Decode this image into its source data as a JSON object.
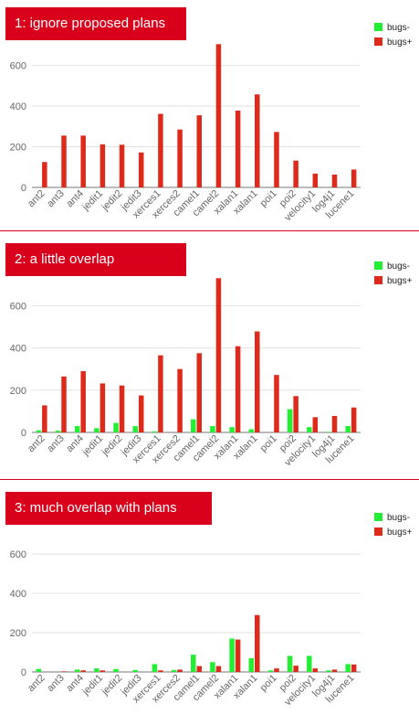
{
  "colors": {
    "bugs_minus": "#22ee33",
    "bugs_plus": "#dd2a1b",
    "banner": "#d9001b",
    "grid": "#e2e2e2",
    "axis": "#777777",
    "tick_text": "#666666"
  },
  "panels": [
    {
      "title": "1: ignore proposed plans"
    },
    {
      "title": "2:  a little overlap"
    },
    {
      "title": "3:  much overlap with plans"
    }
  ],
  "chart_data": [
    {
      "type": "bar",
      "title": "1: ignore proposed plans",
      "categories": [
        "ant2",
        "ant3",
        "ant4",
        "jedit1",
        "jedit2",
        "jedit3",
        "xerces1",
        "xerces2",
        "camel1",
        "camel2",
        "xalan1",
        "xalan1",
        "poi1",
        "poi2",
        "velocity1",
        "log4j1",
        "lucene1"
      ],
      "series": [
        {
          "name": "bugs-",
          "values": [
            0,
            0,
            0,
            0,
            0,
            0,
            0,
            0,
            0,
            0,
            0,
            0,
            0,
            0,
            0,
            0,
            0
          ]
        },
        {
          "name": "bugs+",
          "values": [
            125,
            255,
            255,
            212,
            210,
            172,
            362,
            285,
            355,
            705,
            378,
            458,
            273,
            132,
            68,
            63,
            88
          ]
        }
      ],
      "ylim": [
        0,
        720
      ],
      "yticks": [
        0,
        200,
        400,
        600
      ],
      "grid": true,
      "legend": "top-right"
    },
    {
      "type": "bar",
      "title": "2:  a little overlap",
      "categories": [
        "ant2",
        "ant3",
        "ant4",
        "jedit1",
        "jedit2",
        "jedit3",
        "xerces1",
        "xerces2",
        "camel1",
        "camel2",
        "xalan1",
        "xalan1",
        "poi1",
        "poi2",
        "velocity1",
        "log4j1",
        "lucene1"
      ],
      "series": [
        {
          "name": "bugs-",
          "values": [
            10,
            8,
            30,
            20,
            45,
            30,
            5,
            0,
            62,
            30,
            25,
            15,
            0,
            110,
            25,
            3,
            30
          ]
        },
        {
          "name": "bugs+",
          "values": [
            128,
            265,
            290,
            232,
            222,
            175,
            365,
            300,
            375,
            730,
            408,
            478,
            272,
            172,
            72,
            78,
            118
          ]
        }
      ],
      "ylim": [
        0,
        740
      ],
      "yticks": [
        0,
        200,
        400,
        600
      ],
      "grid": true,
      "legend": "top-right"
    },
    {
      "type": "bar",
      "title": "3:  much overlap with plans",
      "categories": [
        "ant2",
        "ant3",
        "ant4",
        "jedit1",
        "jedit2",
        "jedit3",
        "xerces1",
        "xerces2",
        "camel1",
        "camel2",
        "xalan1",
        "xalan1",
        "poi1",
        "poi2",
        "velocity1",
        "log4j1",
        "lucene1"
      ],
      "series": [
        {
          "name": "bugs-",
          "values": [
            15,
            0,
            12,
            18,
            15,
            10,
            40,
            10,
            88,
            50,
            170,
            70,
            8,
            82,
            82,
            8,
            40
          ]
        },
        {
          "name": "bugs+",
          "values": [
            0,
            3,
            8,
            8,
            0,
            0,
            8,
            12,
            30,
            30,
            165,
            290,
            18,
            32,
            18,
            12,
            38
          ]
        }
      ],
      "ylim": [
        0,
        680
      ],
      "yticks": [
        0,
        200,
        400,
        600
      ],
      "grid": true,
      "legend": "top-right"
    }
  ]
}
